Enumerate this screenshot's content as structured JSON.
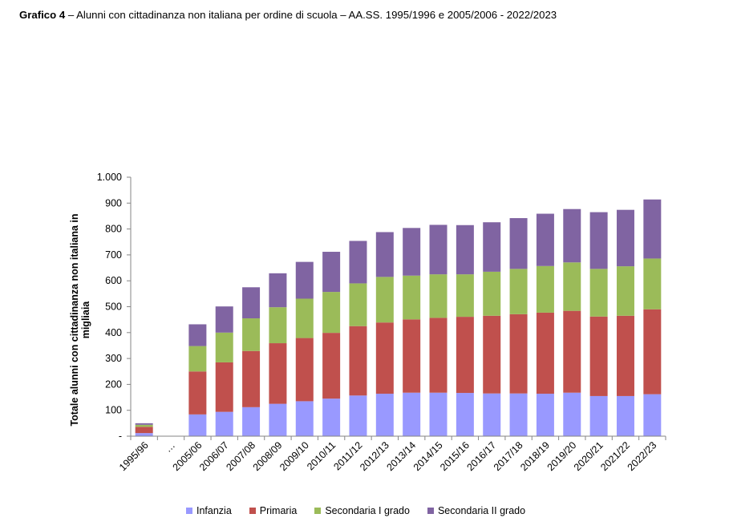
{
  "caption": {
    "lead": "Grafico 4",
    "text": "– Alunni con cittadinanza non italiana per ordine di scuola – AA.SS. 1995/1996 e 2005/2006 - 2022/2023"
  },
  "chart_data": {
    "type": "bar",
    "stacked": true,
    "title": "",
    "xlabel": "",
    "ylabel": "Totale alunni con cittadinanza non italiana in migliaia",
    "ylim": [
      0,
      1000
    ],
    "yticks": [
      0,
      100,
      200,
      300,
      400,
      500,
      600,
      700,
      800,
      900,
      1000
    ],
    "ytick_labels": [
      "-",
      "100",
      "200",
      "300",
      "400",
      "500",
      "600",
      "700",
      "800",
      "900",
      "1.000"
    ],
    "grid": false,
    "legend_position": "bottom",
    "categories": [
      "1995/96",
      "…",
      "2005/06",
      "2006/07",
      "2007/08",
      "2008/09",
      "2009/10",
      "2010/11",
      "2011/12",
      "2012/13",
      "2013/14",
      "2014/15",
      "2015/16",
      "2016/17",
      "2017/18",
      "2018/19",
      "2019/20",
      "2020/21",
      "2021/22",
      "2022/23"
    ],
    "series": [
      {
        "name": "Infanzia",
        "color": "#9999ff",
        "values": [
          12,
          null,
          84,
          94,
          112,
          125,
          135,
          145,
          157,
          164,
          168,
          168,
          167,
          165,
          165,
          164,
          168,
          155,
          155,
          162
        ]
      },
      {
        "name": "Primaria",
        "color": "#c0504d",
        "values": [
          24,
          null,
          166,
          191,
          217,
          234,
          244,
          254,
          268,
          275,
          283,
          289,
          294,
          300,
          306,
          313,
          316,
          307,
          310,
          328
        ]
      },
      {
        "name": "Secondaria I grado",
        "color": "#9bbb59",
        "values": [
          8,
          null,
          98,
          115,
          126,
          139,
          152,
          158,
          165,
          176,
          169,
          168,
          164,
          170,
          175,
          180,
          187,
          184,
          191,
          196
        ]
      },
      {
        "name": "Secondaria II grado",
        "color": "#8064a2",
        "values": [
          6,
          null,
          84,
          101,
          120,
          131,
          142,
          155,
          164,
          173,
          184,
          191,
          190,
          191,
          196,
          202,
          206,
          219,
          218,
          228
        ]
      }
    ]
  }
}
